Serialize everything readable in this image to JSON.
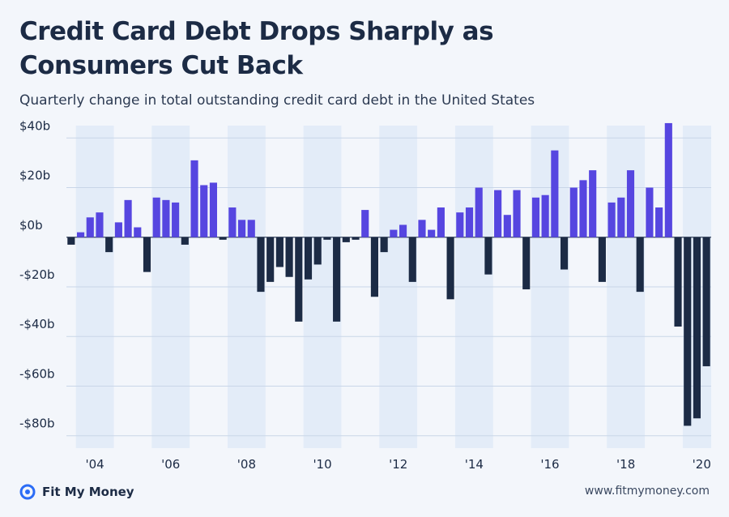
{
  "title": "Credit Card Debt Drops Sharply as Consumers Cut Back",
  "subtitle": "Quarterly change in total outstanding credit card debt in the United States",
  "brand": {
    "name": "Fit My Money",
    "icon": "target-logo-icon",
    "color": "#2b6cf6"
  },
  "website": "www.fitmymoney.com",
  "colors": {
    "positive": "#5646e0",
    "negative": "#1c2b45",
    "band": "#e3ecf8",
    "grid": "#c9d6e8",
    "zero": "#3a4860"
  },
  "chart_data": {
    "type": "bar",
    "unit": "billions USD",
    "x_start": "2003 Q4",
    "frequency": "quarterly",
    "ylim": [
      -85,
      45
    ],
    "yticks": [
      {
        "value": 40,
        "label": "$40b"
      },
      {
        "value": 20,
        "label": "$20b"
      },
      {
        "value": 0,
        "label": "$0b"
      },
      {
        "value": -20,
        "label": "-$20b"
      },
      {
        "value": -40,
        "label": "-$40b"
      },
      {
        "value": -60,
        "label": "-$60b"
      },
      {
        "value": -80,
        "label": "-$80b"
      }
    ],
    "xticks": [
      "'04",
      "'06",
      "'08",
      "'10",
      "'12",
      "'14",
      "'16",
      "'18",
      "'20"
    ],
    "grid": true,
    "shaded_bands": "alternating years",
    "values": [
      -3,
      2,
      8,
      10,
      -6,
      6,
      15,
      4,
      -14,
      16,
      15,
      14,
      -3,
      31,
      21,
      22,
      -1,
      12,
      7,
      7,
      -22,
      -18,
      -12,
      -16,
      -34,
      -17,
      -11,
      -1,
      -34,
      -2,
      -1,
      11,
      -24,
      -6,
      3,
      5,
      -18,
      7,
      3,
      12,
      -25,
      10,
      12,
      20,
      -15,
      19,
      9,
      19,
      -21,
      16,
      17,
      35,
      -13,
      20,
      23,
      27,
      -18,
      14,
      16,
      27,
      -22,
      20,
      12,
      46,
      -36,
      -76,
      -73,
      -52
    ]
  }
}
